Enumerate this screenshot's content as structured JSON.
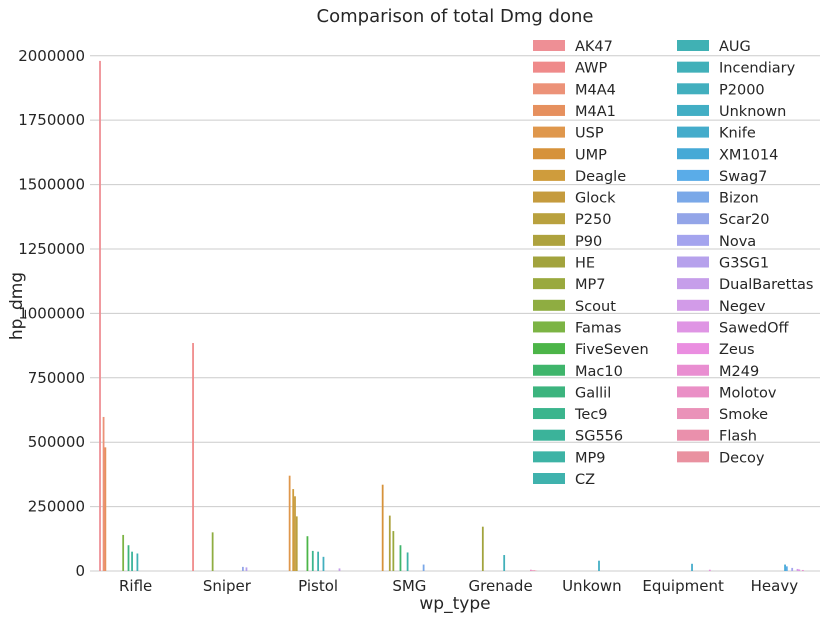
{
  "chart_data": {
    "type": "bar",
    "title": "Comparison of total Dmg done",
    "xlabel": "wp_type",
    "ylabel": "hp_dmg",
    "ylim": [
      0,
      2100000
    ],
    "yticks": [
      0,
      250000,
      500000,
      750000,
      1000000,
      1250000,
      1500000,
      1750000,
      2000000
    ],
    "ytick_labels": [
      "0",
      "250000",
      "500000",
      "750000",
      "1000000",
      "1250000",
      "1500000",
      "1750000",
      "2000000"
    ],
    "grid": true,
    "legend_placement": "top-right",
    "legend_columns": 2,
    "categories": [
      "Rifle",
      "Sniper",
      "Pistol",
      "SMG",
      "Grenade",
      "Unkown",
      "Equipment",
      "Heavy"
    ],
    "series": [
      {
        "name": "AK47",
        "color": "#ee8f95",
        "values": [
          1980000,
          0,
          0,
          0,
          0,
          0,
          0,
          0
        ]
      },
      {
        "name": "AWP",
        "color": "#ef8a8a",
        "values": [
          0,
          885000,
          0,
          0,
          0,
          0,
          0,
          0
        ]
      },
      {
        "name": "M4A4",
        "color": "#ec9278",
        "values": [
          598000,
          0,
          0,
          0,
          0,
          0,
          0,
          0
        ]
      },
      {
        "name": "M4A1",
        "color": "#e6905e",
        "values": [
          480000,
          0,
          0,
          0,
          0,
          0,
          0,
          0
        ]
      },
      {
        "name": "USP",
        "color": "#df974c",
        "values": [
          0,
          0,
          370000,
          0,
          0,
          0,
          0,
          0
        ]
      },
      {
        "name": "UMP",
        "color": "#d6923a",
        "values": [
          0,
          0,
          0,
          335000,
          0,
          0,
          0,
          0
        ]
      },
      {
        "name": "Deagle",
        "color": "#cf9c3c",
        "values": [
          0,
          0,
          318000,
          0,
          0,
          0,
          0,
          0
        ]
      },
      {
        "name": "Glock",
        "color": "#c59b3d",
        "values": [
          0,
          0,
          290000,
          0,
          0,
          0,
          0,
          0
        ]
      },
      {
        "name": "P250",
        "color": "#b9a13e",
        "values": [
          0,
          0,
          212000,
          0,
          0,
          0,
          0,
          0
        ]
      },
      {
        "name": "P90",
        "color": "#aea23e",
        "values": [
          0,
          0,
          0,
          215000,
          0,
          0,
          0,
          0
        ]
      },
      {
        "name": "HE",
        "color": "#a2a33d",
        "values": [
          0,
          0,
          0,
          0,
          172000,
          0,
          0,
          0
        ]
      },
      {
        "name": "MP7",
        "color": "#9aa93e",
        "values": [
          0,
          0,
          0,
          155000,
          0,
          0,
          0,
          0
        ]
      },
      {
        "name": "Scout",
        "color": "#8fad41",
        "values": [
          0,
          150000,
          0,
          0,
          0,
          0,
          0,
          0
        ]
      },
      {
        "name": "Famas",
        "color": "#7cb444",
        "values": [
          140000,
          0,
          0,
          0,
          0,
          0,
          0,
          0
        ]
      },
      {
        "name": "FiveSeven",
        "color": "#4cb548",
        "values": [
          0,
          0,
          135000,
          0,
          0,
          0,
          0,
          0
        ]
      },
      {
        "name": "Mac10",
        "color": "#3fb56b",
        "values": [
          0,
          0,
          0,
          100000,
          0,
          0,
          0,
          0
        ]
      },
      {
        "name": "Gallil",
        "color": "#3cb47e",
        "values": [
          100000,
          0,
          0,
          0,
          0,
          0,
          0,
          0
        ]
      },
      {
        "name": "Tec9",
        "color": "#3bb58d",
        "values": [
          0,
          0,
          78000,
          0,
          0,
          0,
          0,
          0
        ]
      },
      {
        "name": "SG556",
        "color": "#3bb39a",
        "values": [
          75000,
          0,
          0,
          0,
          0,
          0,
          0,
          0
        ]
      },
      {
        "name": "MP9",
        "color": "#3db3a5",
        "values": [
          0,
          0,
          0,
          72000,
          0,
          0,
          0,
          0
        ]
      },
      {
        "name": "CZ",
        "color": "#3fb2ad",
        "values": [
          0,
          0,
          75000,
          0,
          0,
          0,
          0,
          0
        ]
      },
      {
        "name": "AUG",
        "color": "#40b1b4",
        "values": [
          68000,
          0,
          0,
          0,
          0,
          0,
          0,
          0
        ]
      },
      {
        "name": "Incendiary",
        "color": "#41b0b9",
        "values": [
          0,
          0,
          0,
          0,
          62000,
          0,
          0,
          0
        ]
      },
      {
        "name": "P2000",
        "color": "#42afbe",
        "values": [
          0,
          0,
          55000,
          0,
          0,
          0,
          0,
          0
        ]
      },
      {
        "name": "Unknown",
        "color": "#42aec4",
        "values": [
          0,
          0,
          0,
          0,
          0,
          40000,
          0,
          0
        ]
      },
      {
        "name": "Knife",
        "color": "#44accb",
        "values": [
          0,
          0,
          0,
          0,
          0,
          0,
          28000,
          0
        ]
      },
      {
        "name": "XM1014",
        "color": "#45a9d6",
        "values": [
          0,
          0,
          0,
          0,
          0,
          0,
          0,
          25000
        ]
      },
      {
        "name": "Swag7",
        "color": "#5aace8",
        "values": [
          0,
          0,
          0,
          0,
          0,
          0,
          0,
          18000
        ]
      },
      {
        "name": "Bizon",
        "color": "#7aa8e8",
        "values": [
          0,
          0,
          0,
          25000,
          0,
          0,
          0,
          0
        ]
      },
      {
        "name": "Scar20",
        "color": "#93a5e8",
        "values": [
          0,
          16000,
          0,
          0,
          0,
          0,
          0,
          0
        ]
      },
      {
        "name": "Nova",
        "color": "#a4a4ee",
        "values": [
          0,
          0,
          0,
          0,
          0,
          0,
          0,
          12000
        ]
      },
      {
        "name": "G3SG1",
        "color": "#b6a1ec",
        "values": [
          0,
          14000,
          0,
          0,
          0,
          0,
          0,
          0
        ]
      },
      {
        "name": "DualBarettas",
        "color": "#c69eea",
        "values": [
          0,
          0,
          10000,
          0,
          0,
          0,
          0,
          0
        ]
      },
      {
        "name": "Negev",
        "color": "#d29be8",
        "values": [
          0,
          0,
          0,
          0,
          0,
          0,
          0,
          8000
        ]
      },
      {
        "name": "SawedOff",
        "color": "#df95e4",
        "values": [
          0,
          0,
          0,
          0,
          0,
          0,
          0,
          6000
        ]
      },
      {
        "name": "Zeus",
        "color": "#ea8ee0",
        "values": [
          0,
          0,
          0,
          0,
          0,
          0,
          5000,
          0
        ]
      },
      {
        "name": "M249",
        "color": "#e98ed1",
        "values": [
          0,
          0,
          0,
          0,
          0,
          0,
          0,
          4000
        ]
      },
      {
        "name": "Molotov",
        "color": "#ea8fc6",
        "values": [
          0,
          0,
          0,
          0,
          5000,
          0,
          0,
          0
        ]
      },
      {
        "name": "Smoke",
        "color": "#ea92b9",
        "values": [
          0,
          0,
          0,
          0,
          3000,
          0,
          0,
          0
        ]
      },
      {
        "name": "Flash",
        "color": "#ea90ac",
        "values": [
          0,
          0,
          0,
          0,
          3000,
          0,
          0,
          0
        ]
      },
      {
        "name": "Decoy",
        "color": "#e991a0",
        "values": [
          0,
          0,
          0,
          0,
          1000,
          0,
          0,
          0
        ]
      }
    ]
  }
}
